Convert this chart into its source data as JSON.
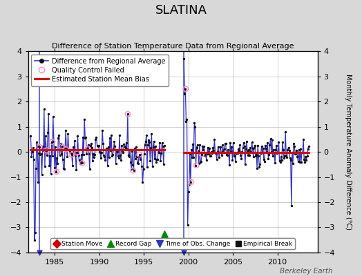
{
  "title": "SLATINA",
  "subtitle": "Difference of Station Temperature Data from Regional Average",
  "ylabel_right": "Monthly Temperature Anomaly Difference (°C)",
  "xlim": [
    1982.0,
    2014.5
  ],
  "ylim": [
    -4,
    4
  ],
  "yticks": [
    -4,
    -3,
    -2,
    -1,
    0,
    1,
    2,
    3,
    4
  ],
  "xticks": [
    1985,
    1990,
    1995,
    2000,
    2005,
    2010
  ],
  "background_color": "#d8d8d8",
  "plot_bg_color": "#ffffff",
  "grid_color": "#bbbbbb",
  "line_color": "#3333bb",
  "dot_color": "#111111",
  "qc_color": "#ff88cc",
  "bias_color": "#dd0000",
  "footer_text": "Berkeley Earth",
  "bias_y1": 0.08,
  "bias_y2": -0.02,
  "bias_x1_start": 1982.3,
  "bias_x1_end": 1997.3,
  "bias_x2_start": 1999.5,
  "bias_x2_end": 2013.5,
  "gap_x": 1997.3,
  "gap_y": -3.25,
  "tobs_x1": 1983.3,
  "tobs_x2": 1999.5,
  "seg1_start": 1982.3,
  "seg1_end": 1997.3,
  "seg2_start": 1999.5,
  "seg2_end": 2013.5
}
